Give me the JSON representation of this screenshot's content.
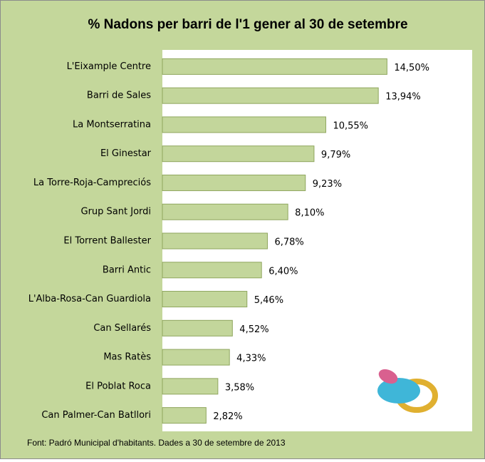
{
  "chart_data": {
    "type": "bar",
    "orientation": "horizontal",
    "title": "% Nadons per barri de l'1 gener al 30 de setembre",
    "categories": [
      "L'Eixample Centre",
      "Barri de Sales",
      "La Montserratina",
      "El Ginestar",
      "La Torre-Roja-Campreciós",
      "Grup Sant Jordi",
      "El Torrent Ballester",
      "Barri Antic",
      "L'Alba-Rosa-Can Guardiola",
      "Can Sellarés",
      "Mas Ratès",
      "El Poblat Roca",
      "Can Palmer-Can Batllori"
    ],
    "values": [
      14.5,
      13.94,
      10.55,
      9.79,
      9.23,
      8.1,
      6.78,
      6.4,
      5.46,
      4.52,
      4.33,
      3.58,
      2.82
    ],
    "value_labels": [
      "14,50%",
      "13,94%",
      "10,55%",
      "9,79%",
      "9,23%",
      "8,10%",
      "6,78%",
      "6,40%",
      "5,46%",
      "4,52%",
      "4,33%",
      "3,58%",
      "2,82%"
    ],
    "color": "#c3d69b",
    "xlim": [
      0,
      20
    ],
    "source": "Font: Padró Municipal d'habitants. Dades a 30 de setembre de 2013"
  }
}
